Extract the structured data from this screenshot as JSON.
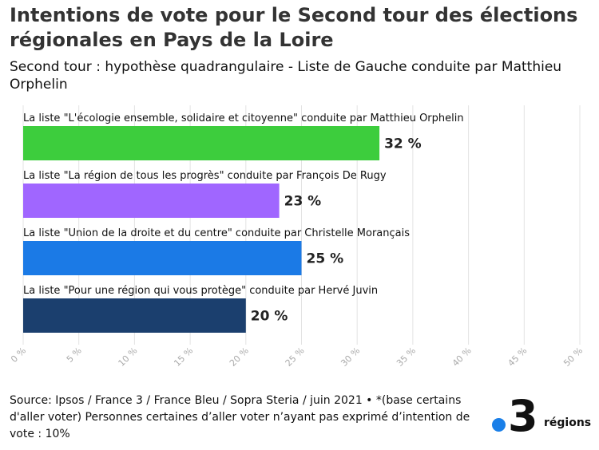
{
  "header": {
    "title": "Intentions de vote pour le Second tour des élections régionales en Pays de la Loire",
    "subtitle": "Second tour : hypothèse quadrangulaire - Liste de Gauche conduite par Matthieu Orphelin"
  },
  "chart_data": {
    "type": "bar",
    "orientation": "horizontal",
    "categories": [
      "La liste \"L'écologie ensemble, solidaire et citoyenne\" conduite par Matthieu Orphelin",
      "La liste \"La région de tous les progrès\" conduite par François De Rugy",
      "La liste \"Union de la droite et du centre\" conduite par Christelle Morançais",
      "La liste \"Pour une région qui vous protège\" conduite par Hervé Juvin"
    ],
    "values": [
      32,
      23,
      25,
      20
    ],
    "value_labels": [
      "32 %",
      "23 %",
      "25 %",
      "20 %"
    ],
    "colors": [
      "#3dcd3d",
      "#a066ff",
      "#1b7ae6",
      "#1b3f6e"
    ],
    "xlim": [
      0,
      50
    ],
    "xticks": [
      0,
      5,
      10,
      15,
      20,
      25,
      30,
      35,
      40,
      45,
      50
    ],
    "xtick_labels": [
      "0 %",
      "5 %",
      "10 %",
      "15 %",
      "20 %",
      "25 %",
      "30 %",
      "35 %",
      "40 %",
      "45 %",
      "50 %"
    ],
    "grid": true
  },
  "footer": {
    "source": "Source: Ipsos / France 3 / France Bleu / Sopra Steria / juin 2021 • *(base certains d'aller voter) Personnes certaines d’aller voter n’ayant pas exprimé d’intention de vote : 10%"
  },
  "logo": {
    "number": "3",
    "text": "régions",
    "dot_color": "#1a7fe8"
  }
}
